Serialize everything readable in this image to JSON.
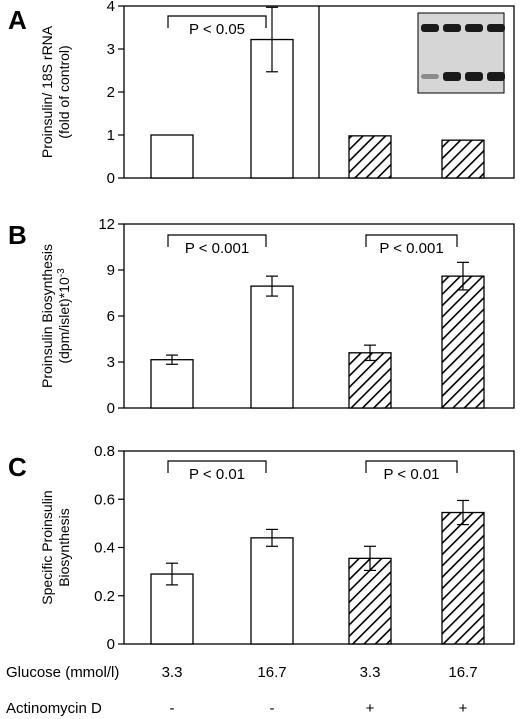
{
  "figure": {
    "conditions": {
      "glucose_label": "Glucose (mmol/l)",
      "glucose_values": [
        "3.3",
        "16.7",
        "3.3",
        "16.7"
      ],
      "actinomycin_label": "Actinomycin D",
      "actinomycin_values": [
        "-",
        "-",
        "+",
        "+"
      ]
    },
    "colors": {
      "bar_outline": "#000000",
      "bar_fill_control": "#ffffff",
      "hatch": "#000000",
      "gel_bg": "#d6d6d6",
      "gel_band": "#1a1a1a"
    }
  },
  "chart_data": [
    {
      "panel": "A",
      "type": "bar",
      "ylabel_lines": [
        "Proinsulin/ 18S rRNA",
        "(fold of control)"
      ],
      "ylim": [
        0,
        4
      ],
      "yticks": [
        0,
        1,
        2,
        3,
        4
      ],
      "values": [
        1.0,
        3.22,
        0.98,
        0.88
      ],
      "errors": [
        0,
        0.75,
        0,
        0
      ],
      "hatched": [
        false,
        false,
        true,
        true
      ],
      "divider_after_bar": 2,
      "inset": "gel image",
      "brackets": [
        {
          "from": 0,
          "to": 1,
          "label": "P < 0.05"
        }
      ]
    },
    {
      "panel": "B",
      "type": "bar",
      "ylabel_lines": [
        "Proinsulin Biosynthesis",
        "(dpm/islet)*10",
        "-3"
      ],
      "ylim": [
        0,
        12
      ],
      "yticks": [
        0,
        3,
        6,
        9,
        12
      ],
      "values": [
        3.15,
        7.95,
        3.6,
        8.6
      ],
      "errors": [
        0.3,
        0.65,
        0.5,
        0.9
      ],
      "hatched": [
        false,
        false,
        true,
        true
      ],
      "brackets": [
        {
          "from": 0,
          "to": 1,
          "label": "P < 0.001"
        },
        {
          "from": 2,
          "to": 3,
          "label": "P < 0.001"
        }
      ]
    },
    {
      "panel": "C",
      "type": "bar",
      "ylabel_lines": [
        "Specific Proinsulin",
        "Biosynthesis"
      ],
      "ylim": [
        0,
        0.8
      ],
      "yticks": [
        0,
        0.2,
        0.4,
        0.6,
        0.8
      ],
      "ytick_labels": [
        "0",
        "0.2",
        "0.4",
        "0.6",
        "0.8"
      ],
      "values": [
        0.29,
        0.44,
        0.355,
        0.545
      ],
      "errors": [
        0.045,
        0.035,
        0.05,
        0.05
      ],
      "hatched": [
        false,
        false,
        true,
        true
      ],
      "brackets": [
        {
          "from": 0,
          "to": 1,
          "label": "P < 0.01"
        },
        {
          "from": 2,
          "to": 3,
          "label": "P < 0.01"
        }
      ]
    }
  ]
}
